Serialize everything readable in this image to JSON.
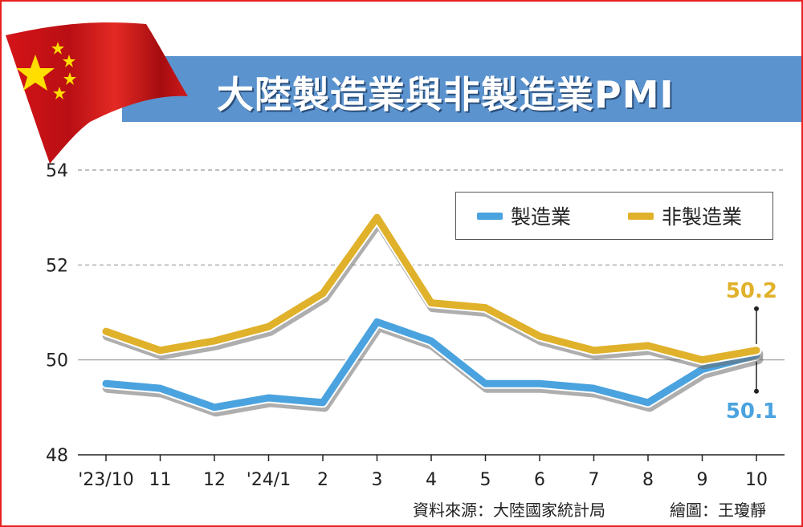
{
  "title": "大陸製造業與非製造業PMI",
  "legend": {
    "series_0": "製造業",
    "series_1": "非製造業"
  },
  "annotations": {
    "nonmanufacturing_last": "50.2",
    "manufacturing_last": "50.1"
  },
  "footer": {
    "source": "資料來源：大陸國家統計局",
    "credit": "繪圖：王瓊靜"
  },
  "colors": {
    "manufacturing": "#4aa3df",
    "nonmanufacturing": "#e0b12a",
    "title_band": "#5b93cf",
    "frame": "#e8211e"
  },
  "chart_data": {
    "type": "line",
    "categories": [
      "'23/10",
      "11",
      "12",
      "'24/1",
      "2",
      "3",
      "4",
      "5",
      "6",
      "7",
      "8",
      "9",
      "10"
    ],
    "series": [
      {
        "name": "製造業",
        "values": [
          49.5,
          49.4,
          49.0,
          49.2,
          49.1,
          50.8,
          50.4,
          49.5,
          49.5,
          49.4,
          49.1,
          49.8,
          50.1
        ]
      },
      {
        "name": "非製造業",
        "values": [
          50.6,
          50.2,
          50.4,
          50.7,
          51.4,
          53.0,
          51.2,
          51.1,
          50.5,
          50.2,
          50.3,
          50.0,
          50.2
        ]
      }
    ],
    "yticks": [
      48,
      50,
      52,
      54
    ],
    "ylim": [
      48,
      54
    ],
    "grid": "dashed horizontal",
    "legend_position": "top-right"
  }
}
